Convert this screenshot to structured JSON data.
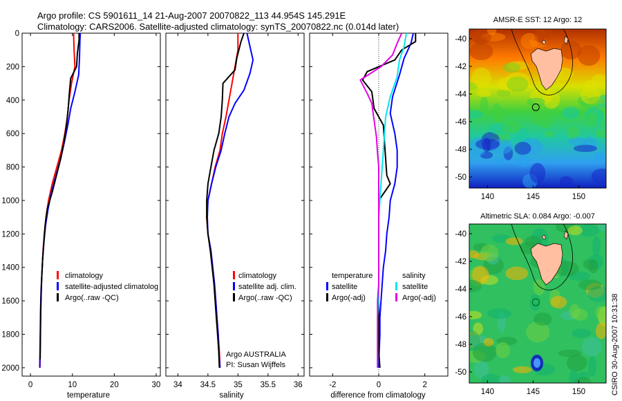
{
  "header": {
    "title_line1": "Argo profile: CS 5901611_14 21-Aug-2007 20070822_113 44.954S 145.291E",
    "title_line2": "Climatology: CARS2006. Satellite-adjusted climatology: synTS_20070822.nc (0.014d later)"
  },
  "colors": {
    "climatology": "#ff0000",
    "satellite": "#0000ff",
    "argo": "#000000",
    "salinity_satellite": "#00e5ee",
    "salinity_argo": "#e500e5",
    "land": "#ffbfa0"
  },
  "chart_data": [
    {
      "type": "line",
      "xlabel": "temperature",
      "xlim": [
        -2,
        31
      ],
      "ylim": [
        2050,
        0
      ],
      "x_ticks": [
        0,
        10,
        20,
        30
      ],
      "y_ticks": [
        0,
        200,
        400,
        600,
        800,
        1000,
        1200,
        1400,
        1600,
        1800,
        2000
      ],
      "legend": [
        "climatology",
        "satellite-adjusted climatolog",
        "Argo(..raw -QC)"
      ],
      "series": [
        {
          "name": "climatology",
          "color": "#ff0000",
          "points": [
            [
              10.3,
              0
            ],
            [
              10.4,
              100
            ],
            [
              10.6,
              200
            ],
            [
              9.8,
              300
            ],
            [
              9.2,
              400
            ],
            [
              8.8,
              500
            ],
            [
              8.2,
              600
            ],
            [
              7.4,
              700
            ],
            [
              6.3,
              800
            ],
            [
              5.2,
              900
            ],
            [
              4.3,
              1000
            ],
            [
              3.7,
              1100
            ],
            [
              3.3,
              1200
            ],
            [
              3.0,
              1300
            ],
            [
              2.8,
              1400
            ],
            [
              2.6,
              1500
            ],
            [
              2.5,
              1600
            ],
            [
              2.4,
              1700
            ],
            [
              2.35,
              1800
            ],
            [
              2.3,
              1900
            ],
            [
              2.25,
              2000
            ]
          ]
        },
        {
          "name": "satellite-adjusted climatolog",
          "color": "#0000ff",
          "points": [
            [
              11.9,
              0
            ],
            [
              11.8,
              50
            ],
            [
              11.7,
              150
            ],
            [
              11.5,
              250
            ],
            [
              10.6,
              350
            ],
            [
              9.6,
              450
            ],
            [
              8.9,
              550
            ],
            [
              8.1,
              650
            ],
            [
              7.2,
              750
            ],
            [
              6.1,
              850
            ],
            [
              5.0,
              950
            ],
            [
              4.2,
              1050
            ],
            [
              3.6,
              1150
            ],
            [
              3.2,
              1250
            ],
            [
              2.9,
              1350
            ],
            [
              2.7,
              1450
            ],
            [
              2.5,
              1550
            ],
            [
              2.4,
              1650
            ],
            [
              2.35,
              1750
            ],
            [
              2.3,
              1850
            ],
            [
              2.2,
              2000
            ]
          ]
        },
        {
          "name": "Argo(..raw -QC)",
          "color": "#000000",
          "points": [
            [
              11.6,
              0
            ],
            [
              11.6,
              40
            ],
            [
              11.2,
              120
            ],
            [
              11.0,
              200
            ],
            [
              9.6,
              270
            ],
            [
              9.3,
              350
            ],
            [
              9.0,
              450
            ],
            [
              8.6,
              550
            ],
            [
              8.0,
              650
            ],
            [
              7.2,
              750
            ],
            [
              6.2,
              850
            ],
            [
              5.2,
              950
            ],
            [
              4.0,
              1050
            ],
            [
              3.5,
              1150
            ],
            [
              3.2,
              1250
            ],
            [
              2.9,
              1350
            ],
            [
              2.7,
              1450
            ],
            [
              2.55,
              1550
            ],
            [
              2.45,
              1650
            ],
            [
              2.4,
              1750
            ],
            [
              2.35,
              1850
            ],
            [
              2.3,
              1950
            ]
          ]
        }
      ]
    },
    {
      "type": "line",
      "xlabel": "salinity",
      "xlim": [
        33.8,
        36.1
      ],
      "ylim": [
        2050,
        0
      ],
      "x_ticks": [
        34,
        34.5,
        35,
        35.5,
        36
      ],
      "legend": [
        "climatology",
        "satellite adj. clim.",
        "Argo(..raw -QC)"
      ],
      "annotation": [
        "Argo AUSTRALIA",
        "PI: Susan Wijffels"
      ],
      "series": [
        {
          "name": "climatology",
          "color": "#ff0000",
          "points": [
            [
              35.0,
              0
            ],
            [
              35.0,
              100
            ],
            [
              34.95,
              200
            ],
            [
              34.9,
              300
            ],
            [
              34.85,
              400
            ],
            [
              34.8,
              500
            ],
            [
              34.74,
              600
            ],
            [
              34.7,
              700
            ],
            [
              34.62,
              800
            ],
            [
              34.56,
              900
            ],
            [
              34.5,
              1000
            ],
            [
              34.48,
              1100
            ],
            [
              34.5,
              1200
            ],
            [
              34.55,
              1300
            ],
            [
              34.58,
              1400
            ],
            [
              34.61,
              1500
            ],
            [
              34.63,
              1600
            ],
            [
              34.65,
              1700
            ],
            [
              34.67,
              1800
            ],
            [
              34.69,
              1900
            ],
            [
              34.7,
              2000
            ]
          ]
        },
        {
          "name": "satellite adj. clim.",
          "color": "#0000ff",
          "points": [
            [
              35.15,
              0
            ],
            [
              35.2,
              80
            ],
            [
              35.25,
              160
            ],
            [
              35.2,
              240
            ],
            [
              35.1,
              340
            ],
            [
              34.95,
              420
            ],
            [
              34.85,
              500
            ],
            [
              34.78,
              600
            ],
            [
              34.72,
              700
            ],
            [
              34.63,
              800
            ],
            [
              34.56,
              900
            ],
            [
              34.5,
              1000
            ],
            [
              34.49,
              1100
            ],
            [
              34.5,
              1200
            ],
            [
              34.55,
              1300
            ],
            [
              34.58,
              1400
            ],
            [
              34.61,
              1500
            ],
            [
              34.63,
              1600
            ],
            [
              34.65,
              1700
            ],
            [
              34.67,
              1800
            ],
            [
              34.68,
              1900
            ],
            [
              34.7,
              2000
            ]
          ]
        },
        {
          "name": "Argo(..raw -QC)",
          "color": "#000000",
          "points": [
            [
              35.1,
              0
            ],
            [
              35.05,
              50
            ],
            [
              34.98,
              150
            ],
            [
              34.95,
              220
            ],
            [
              34.75,
              300
            ],
            [
              34.74,
              400
            ],
            [
              34.72,
              500
            ],
            [
              34.68,
              600
            ],
            [
              34.6,
              700
            ],
            [
              34.55,
              800
            ],
            [
              34.5,
              900
            ],
            [
              34.48,
              1000
            ],
            [
              34.48,
              1100
            ],
            [
              34.5,
              1200
            ],
            [
              34.54,
              1300
            ],
            [
              34.57,
              1400
            ],
            [
              34.6,
              1500
            ],
            [
              34.62,
              1600
            ],
            [
              34.64,
              1700
            ],
            [
              34.66,
              1800
            ],
            [
              34.68,
              1900
            ],
            [
              34.69,
              2000
            ]
          ]
        }
      ]
    },
    {
      "type": "line",
      "xlabel": "difference from climatology",
      "xlim": [
        -3,
        3
      ],
      "ylim": [
        2050,
        0
      ],
      "x_ticks": [
        -2,
        0,
        2
      ],
      "legend_left": {
        "heading": "temperature",
        "items": [
          "satellite",
          "Argo(-adj)"
        ]
      },
      "legend_right": {
        "heading": "salinity",
        "items": [
          "satellite",
          "Argo(-adj)"
        ]
      },
      "series": [
        {
          "name": "temperature satellite",
          "color": "#0000ff",
          "points": [
            [
              1.5,
              0
            ],
            [
              1.4,
              60
            ],
            [
              1.1,
              150
            ],
            [
              0.9,
              250
            ],
            [
              0.6,
              380
            ],
            [
              0.5,
              480
            ],
            [
              0.7,
              600
            ],
            [
              0.8,
              700
            ],
            [
              0.8,
              800
            ],
            [
              0.7,
              900
            ],
            [
              0.5,
              1000
            ],
            [
              0.45,
              1100
            ],
            [
              0.35,
              1200
            ],
            [
              0.3,
              1300
            ],
            [
              0.2,
              1400
            ],
            [
              0.15,
              1500
            ],
            [
              0.1,
              1600
            ],
            [
              0.05,
              1700
            ],
            [
              0.05,
              1800
            ],
            [
              0.02,
              1900
            ],
            [
              0.0,
              2000
            ]
          ]
        },
        {
          "name": "temperature Argo(-adj)",
          "color": "#000000",
          "points": [
            [
              1.6,
              0
            ],
            [
              1.6,
              50
            ],
            [
              1.0,
              100
            ],
            [
              0.7,
              160
            ],
            [
              -0.5,
              230
            ],
            [
              -0.7,
              280
            ],
            [
              -0.3,
              350
            ],
            [
              -0.2,
              450
            ],
            [
              0.2,
              550
            ],
            [
              0.25,
              650
            ],
            [
              0.3,
              750
            ],
            [
              0.35,
              850
            ],
            [
              0.5,
              900
            ],
            [
              0.0,
              1000
            ],
            [
              0.0,
              1100
            ],
            [
              0.0,
              1200
            ],
            [
              0.0,
              1300
            ],
            [
              0.0,
              1400
            ],
            [
              0.0,
              1500
            ],
            [
              0.0,
              1600
            ],
            [
              0.0,
              1700
            ],
            [
              0.0,
              1800
            ],
            [
              0.0,
              1900
            ],
            [
              0.05,
              2000
            ]
          ]
        },
        {
          "name": "salinity satellite",
          "color": "#00e5ee",
          "points": [
            [
              1.2,
              0
            ],
            [
              1.1,
              80
            ],
            [
              0.9,
              160
            ],
            [
              0.8,
              260
            ],
            [
              0.5,
              380
            ],
            [
              0.3,
              500
            ],
            [
              0.25,
              600
            ],
            [
              0.2,
              700
            ],
            [
              0.15,
              800
            ],
            [
              0.1,
              900
            ],
            [
              0.05,
              1000
            ],
            [
              0.0,
              1100
            ],
            [
              0.0,
              1200
            ],
            [
              0.0,
              1300
            ],
            [
              0.0,
              1400
            ],
            [
              0.0,
              1500
            ],
            [
              0.0,
              1600
            ],
            [
              -0.05,
              1700
            ],
            [
              -0.05,
              1800
            ],
            [
              -0.05,
              1900
            ],
            [
              -0.05,
              2000
            ]
          ]
        },
        {
          "name": "salinity Argo(-adj)",
          "color": "#e500e5",
          "points": [
            [
              1.0,
              0
            ],
            [
              0.8,
              60
            ],
            [
              0.6,
              130
            ],
            [
              0.1,
              200
            ],
            [
              -0.8,
              280
            ],
            [
              -0.5,
              360
            ],
            [
              -0.3,
              420
            ],
            [
              -0.2,
              520
            ],
            [
              -0.1,
              620
            ],
            [
              -0.05,
              720
            ],
            [
              0.0,
              800
            ],
            [
              0.0,
              900
            ],
            [
              0.0,
              1000
            ],
            [
              0.0,
              1100
            ],
            [
              0.0,
              1200
            ],
            [
              0.0,
              1300
            ],
            [
              0.0,
              1400
            ],
            [
              0.0,
              1500
            ],
            [
              -0.05,
              1600
            ],
            [
              -0.05,
              1700
            ],
            [
              -0.05,
              1800
            ],
            [
              -0.05,
              1900
            ],
            [
              -0.05,
              2000
            ]
          ]
        }
      ]
    },
    {
      "type": "heatmap",
      "title": "AMSR-E SST: 12  Argo: 12",
      "x_ticks": [
        140,
        145,
        150
      ],
      "y_ticks": [
        -40,
        -42,
        -44,
        -46,
        -48,
        -50
      ],
      "xlim": [
        138,
        153
      ],
      "ylim": [
        -50.8,
        -39.3
      ],
      "marker": {
        "lon": 145.291,
        "lat": -44.954,
        "color": "#000000"
      }
    },
    {
      "type": "heatmap",
      "title": "Altimetric SLA: 0.084  Argo: -0.007",
      "x_ticks": [
        140,
        145,
        150
      ],
      "y_ticks": [
        -40,
        -42,
        -44,
        -46,
        -48,
        -50
      ],
      "xlim": [
        138,
        153
      ],
      "ylim": [
        -50.8,
        -39.3
      ],
      "marker": {
        "lon": 145.291,
        "lat": -44.954,
        "color": "#006400"
      }
    }
  ],
  "footer": {
    "stamp": "CSIRO 30-Aug-2007 10:31:38"
  }
}
